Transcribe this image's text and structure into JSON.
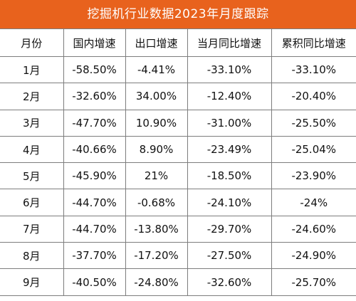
{
  "title": "挖掘机行业数据2023年月度跟踪",
  "table": {
    "headers": [
      "月份",
      "国内增速",
      "出口增速",
      "当月同比增速",
      "累积同比增速"
    ],
    "rows": [
      [
        "1月",
        "-58.50%",
        "-4.41%",
        "-33.10%",
        "-33.10%"
      ],
      [
        "2月",
        "-32.60%",
        "34.00%",
        "-12.40%",
        "-20.40%"
      ],
      [
        "3月",
        "-47.70%",
        "10.90%",
        "-31.00%",
        "-25.50%"
      ],
      [
        "4月",
        "-40.66%",
        "8.90%",
        "-23.49%",
        "-25.04%"
      ],
      [
        "5月",
        "-45.90%",
        "21%",
        "-18.50%",
        "-23.90%"
      ],
      [
        "6月",
        "-44.70%",
        "-0.68%",
        "-24.10%",
        "-24%"
      ],
      [
        "7月",
        "-44.70%",
        "-13.80%",
        "-29.70%",
        "-24.60%"
      ],
      [
        "8月",
        "-37.70%",
        "-17.20%",
        "-27.50%",
        "-24.90%"
      ],
      [
        "9月",
        "-40.50%",
        "-24.80%",
        "-32.60%",
        "-25.70%"
      ]
    ]
  },
  "colors": {
    "title_bg": "#e8621d",
    "title_text": "#ffffff",
    "border": "#7d7d7d"
  }
}
